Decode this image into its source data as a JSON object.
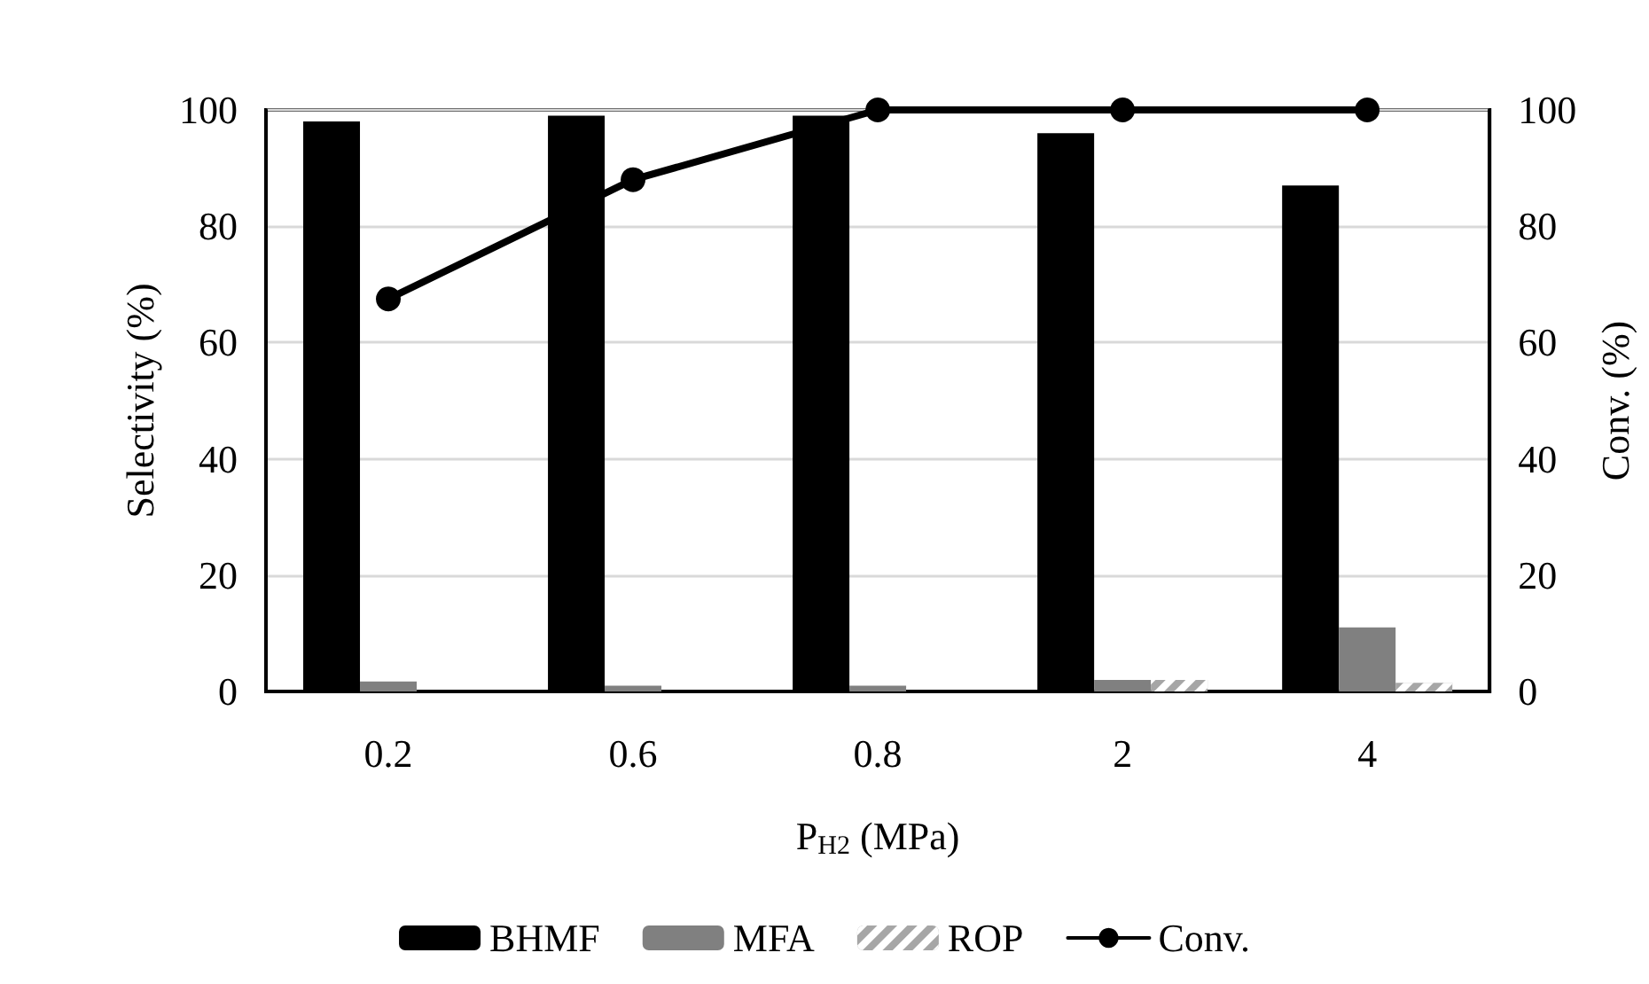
{
  "chart_data": {
    "type": "bar",
    "xlabel": "P$_{H2}$ (MPa)",
    "ylabel": "Selectivity (%)",
    "y2label": "Conv. (%)",
    "categories": [
      "0.2",
      "0.6",
      "0.8",
      "2",
      "4"
    ],
    "series": [
      {
        "name": "BHMF",
        "color": "#000000",
        "values": [
          98,
          99,
          99,
          96,
          87
        ]
      },
      {
        "name": "MFA",
        "color": "#808080",
        "values": [
          1.7,
          1,
          1,
          2,
          11
        ]
      },
      {
        "name": "ROP",
        "color": "#a6a6a6",
        "values": [
          0,
          0,
          0,
          2,
          1.5
        ]
      },
      {
        "name": "Conv.",
        "type": "line",
        "axis": "y2",
        "color": "#000000",
        "marker": "circle",
        "values": [
          67.5,
          88,
          100,
          100,
          100
        ]
      }
    ],
    "ylim": [
      0,
      100
    ],
    "yticks": [
      0,
      20,
      40,
      60,
      80,
      100
    ],
    "y2lim": [
      0,
      100
    ],
    "y2ticks": [
      0,
      20,
      40,
      60,
      80,
      100
    ],
    "grid": "y",
    "legend": "bottom"
  }
}
